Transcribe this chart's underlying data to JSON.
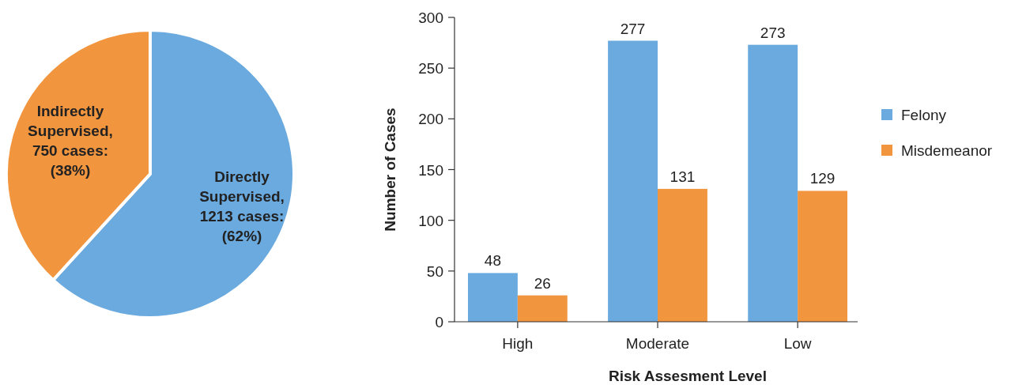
{
  "chart_data": [
    {
      "type": "pie",
      "categories": [
        "Directly Supervised",
        "Indirectly Supervised"
      ],
      "values": [
        1213,
        750
      ],
      "colors": [
        "#6aaadf",
        "#f2953f"
      ],
      "value_labels": [
        ",\n1213 cases:\n(62%)",
        ",\n750 cases:\n(38%)"
      ]
    },
    {
      "type": "bar",
      "categories": [
        "High",
        "Moderate",
        "Low"
      ],
      "xlabel": "Risk Assesment Level",
      "ylabel": "Number of Cases",
      "ylim": [
        0,
        300
      ],
      "yticks": [
        0,
        50,
        100,
        150,
        200,
        250,
        300
      ],
      "grid": false,
      "legend": "right",
      "data_labels": true,
      "series": [
        {
          "name": "Felony",
          "color": "#6aaadf",
          "values": [
            48,
            277,
            273
          ]
        },
        {
          "name": "Misdemeanor",
          "color": "#f2953f",
          "values": [
            26,
            131,
            129
          ]
        }
      ]
    }
  ]
}
